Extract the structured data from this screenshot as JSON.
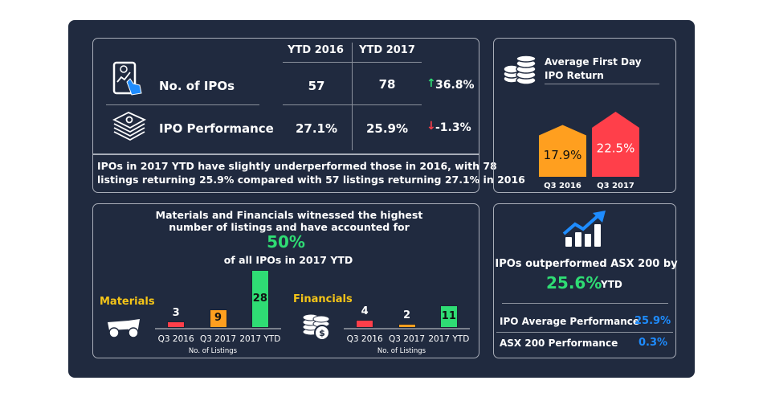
{
  "colors": {
    "background": "#202a3f",
    "green": "#2fdc74",
    "red": "#ff3f4a",
    "orange": "#ff9f1f",
    "yellow": "#f5c518",
    "blue": "#1e8cff"
  },
  "ipo_table": {
    "columns": [
      "YTD 2016",
      "YTD 2017"
    ],
    "rows": [
      {
        "icon": "tablet-chart-touch-icon",
        "label": "No. of IPOs",
        "ytd2016": "57",
        "ytd2017": "78",
        "change": "36.8%",
        "direction": "up"
      },
      {
        "icon": "money-stack-icon",
        "label": "IPO Performance",
        "ytd2016": "27.1%",
        "ytd2017": "25.9%",
        "change": "-1.3%",
        "direction": "down"
      }
    ],
    "summary_line1": "IPOs in 2017 YTD have slightly underperformed those in 2016, with 78",
    "summary_line2": "listings returning 25.9% compared with 57 listings returning 27.1% in 2016"
  },
  "sectors": {
    "headline_line1": "Materials and Financials witnessed the highest",
    "headline_line2": "number of listings and have accounted for",
    "highlight": "50%",
    "headline_line3": "of all IPOs in 2017 YTD"
  },
  "first_day": {
    "title_line1": "Average First Day",
    "title_line2": "IPO Return"
  },
  "outperform": {
    "text": "IPOs outperformed ASX 200 by",
    "value": "25.6%",
    "suffix": "YTD",
    "rows": [
      {
        "label": "IPO Average Performance",
        "value": "25.9%"
      },
      {
        "label": "ASX 200 Performance",
        "value": "0.3%"
      }
    ]
  },
  "chart_data": [
    {
      "type": "bar",
      "title": "Materials",
      "xlabel": "No. of Listings",
      "categories": [
        "Q3 2016",
        "Q3 2017",
        "2017 YTD"
      ],
      "values": [
        3,
        9,
        28
      ],
      "colors": [
        "#ff3f4a",
        "#ff9f1f",
        "#2fdc74"
      ],
      "data_labels": [
        "3",
        "9",
        "28"
      ]
    },
    {
      "type": "bar",
      "title": "Financials",
      "xlabel": "No. of Listings",
      "categories": [
        "Q3 2016",
        "Q3 2017",
        "2017 YTD"
      ],
      "values": [
        4,
        2,
        11
      ],
      "colors": [
        "#ff3f4a",
        "#ff9f1f",
        "#2fdc74"
      ],
      "data_labels": [
        "4",
        "2",
        "11"
      ]
    },
    {
      "type": "bar",
      "title": "Average First Day IPO Return",
      "categories": [
        "Q3 2016",
        "Q3 2017"
      ],
      "values": [
        17.9,
        22.5
      ],
      "colors": [
        "#ff9f1f",
        "#ff3f4a"
      ],
      "data_labels": [
        "17.9%",
        "22.5%"
      ]
    }
  ]
}
